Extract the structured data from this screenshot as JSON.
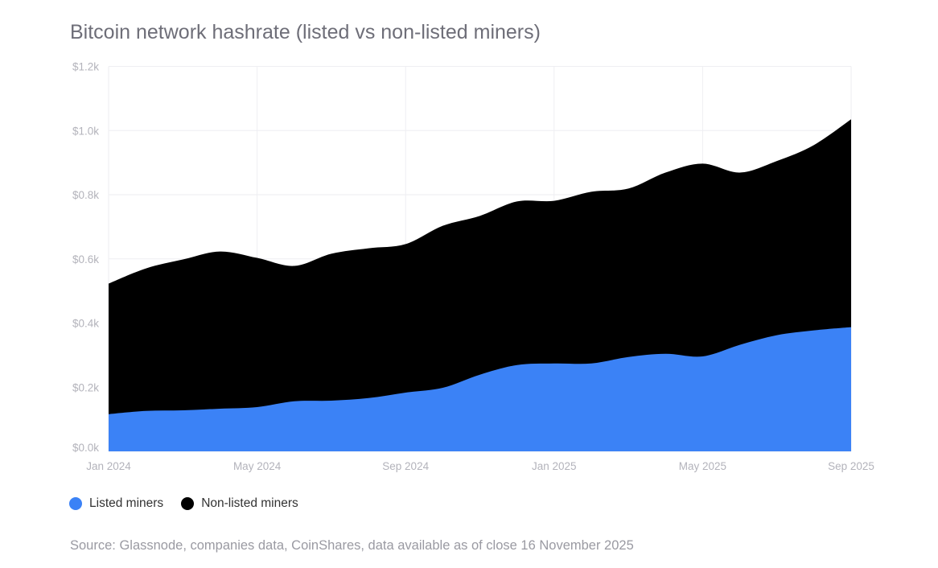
{
  "chart_data": {
    "type": "area",
    "stacked": true,
    "title": "Bitcoin network hashrate (listed vs non-listed miners)",
    "x": [
      "2024-01",
      "2024-02",
      "2024-03",
      "2024-04",
      "2024-05",
      "2024-06",
      "2024-07",
      "2024-08",
      "2024-09",
      "2024-10",
      "2024-11",
      "2024-12",
      "2025-01",
      "2025-02",
      "2025-03",
      "2025-04",
      "2025-05",
      "2025-06",
      "2025-07",
      "2025-08",
      "2025-09"
    ],
    "x_ticks": [
      "Jan 2024",
      "May 2024",
      "Sep 2024",
      "Jan 2025",
      "May 2025",
      "Sep 2025"
    ],
    "y_ticks": [
      "$0.0k",
      "$0.2k",
      "$0.4k",
      "$0.6k",
      "$0.8k",
      "$1.0k",
      "$1.2k"
    ],
    "ylim": [
      0,
      1.2
    ],
    "grid": true,
    "legend_position": "bottom-left",
    "series": [
      {
        "name": "Listed miners",
        "color": "#3b82f6",
        "values": [
          0.116,
          0.126,
          0.128,
          0.133,
          0.138,
          0.156,
          0.158,
          0.166,
          0.183,
          0.198,
          0.239,
          0.269,
          0.274,
          0.274,
          0.294,
          0.304,
          0.296,
          0.332,
          0.362,
          0.377,
          0.387
        ]
      },
      {
        "name": "Non-listed miners",
        "color": "#000000",
        "values": [
          0.407,
          0.444,
          0.47,
          0.49,
          0.465,
          0.422,
          0.458,
          0.467,
          0.463,
          0.505,
          0.495,
          0.51,
          0.507,
          0.535,
          0.525,
          0.565,
          0.601,
          0.537,
          0.543,
          0.578,
          0.648
        ]
      }
    ]
  },
  "source": "Source: Glassnode, companies data, CoinShares, data available as of close 16 November 2025"
}
